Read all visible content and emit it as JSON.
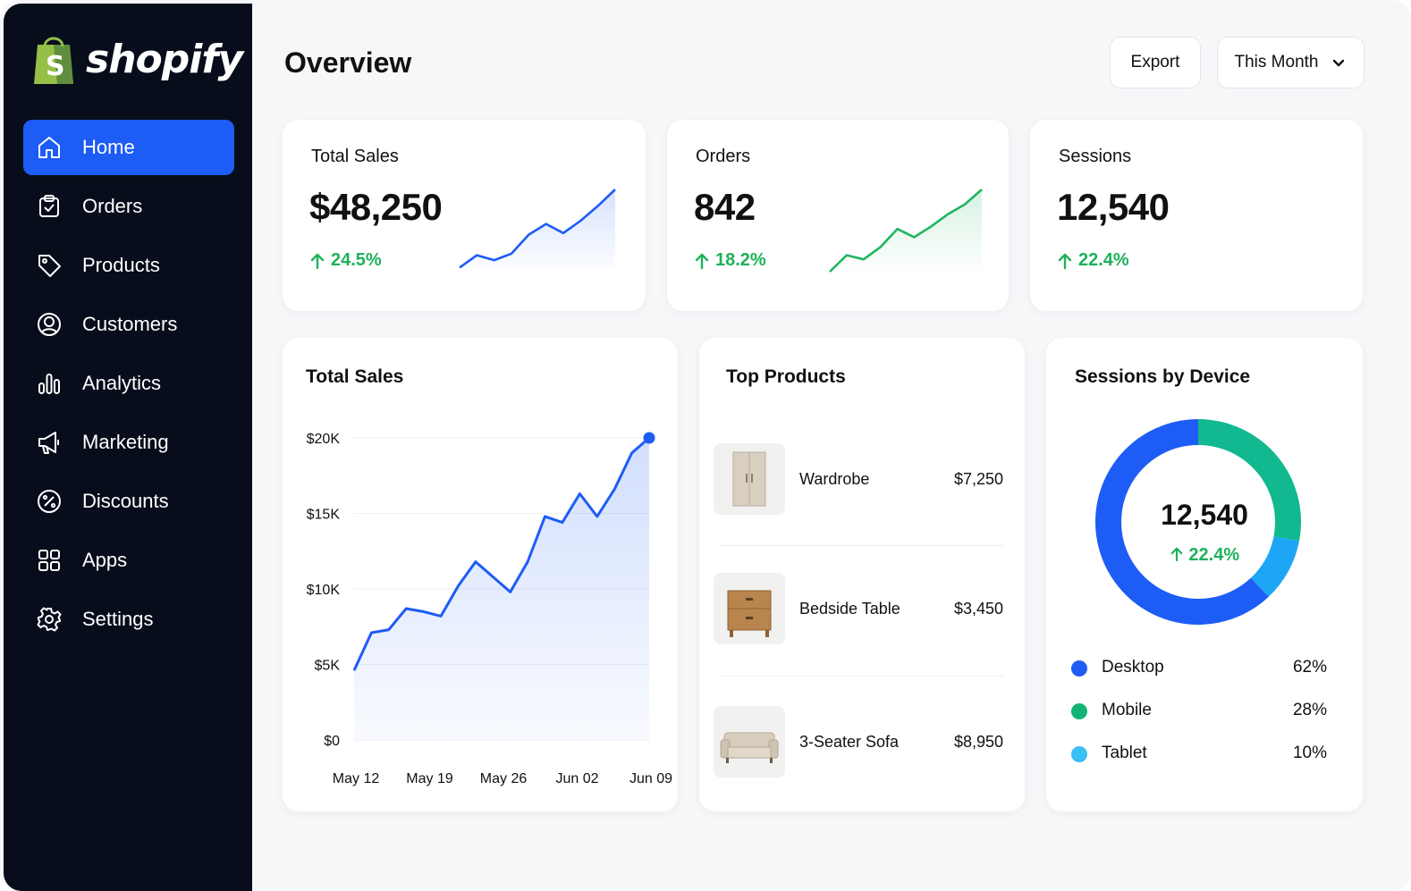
{
  "brand": {
    "name": "shopify"
  },
  "sidebar": {
    "items": [
      {
        "label": "Home",
        "icon": "home-icon",
        "active": true
      },
      {
        "label": "Orders",
        "icon": "clipboard-icon",
        "active": false
      },
      {
        "label": "Products",
        "icon": "tag-icon",
        "active": false
      },
      {
        "label": "Customers",
        "icon": "user-circle-icon",
        "active": false
      },
      {
        "label": "Analytics",
        "icon": "bar-chart-icon",
        "active": false
      },
      {
        "label": "Marketing",
        "icon": "megaphone-icon",
        "active": false
      },
      {
        "label": "Discounts",
        "icon": "percent-icon",
        "active": false
      },
      {
        "label": "Apps",
        "icon": "grid-icon",
        "active": false
      },
      {
        "label": "Settings",
        "icon": "gear-icon",
        "active": false
      }
    ]
  },
  "header": {
    "title": "Overview",
    "export_label": "Export",
    "range_label": "This Month"
  },
  "kpis": [
    {
      "label": "Total Sales",
      "value": "$48,250",
      "delta": "24.5%",
      "color": "#1d5cf5",
      "spark": [
        0.05,
        0.2,
        0.14,
        0.22,
        0.45,
        0.58,
        0.47,
        0.62,
        0.8,
        1.0
      ]
    },
    {
      "label": "Orders",
      "value": "842",
      "delta": "18.2%",
      "color": "#22b55f",
      "spark": [
        0.0,
        0.2,
        0.15,
        0.3,
        0.52,
        0.42,
        0.55,
        0.7,
        0.82,
        1.0
      ]
    },
    {
      "label": "Sessions",
      "value": "12,540",
      "delta": "22.4%",
      "color": null,
      "spark": []
    }
  ],
  "sales_panel": {
    "title": "Total Sales"
  },
  "chart_data": {
    "type": "area",
    "title": "Total Sales",
    "x_ticks": [
      "May 12",
      "May 19",
      "May 26",
      "Jun 02",
      "Jun 09"
    ],
    "y_ticks": [
      "$0",
      "$5K",
      "$10K",
      "$15K",
      "$20K"
    ],
    "ylim": [
      0,
      20000
    ],
    "grid": true,
    "series": [
      {
        "values": [
          4600,
          7100,
          7300,
          8700,
          8500,
          8200,
          10200,
          11800,
          10800,
          9800,
          11800,
          14800,
          14400,
          16300,
          14800,
          16600,
          19000,
          20000
        ]
      }
    ]
  },
  "top_products": {
    "title": "Top Products",
    "items": [
      {
        "name": "Wardrobe",
        "price": "$7,250",
        "thumb": "wardrobe-thumbnail"
      },
      {
        "name": "Bedside Table",
        "price": "$3,450",
        "thumb": "bedside-table-thumbnail"
      },
      {
        "name": "3-Seater Sofa",
        "price": "$8,950",
        "thumb": "sofa-thumbnail"
      }
    ]
  },
  "devices": {
    "title": "Sessions by Device",
    "total": "12,540",
    "delta": "22.4%",
    "items": [
      {
        "name": "Desktop",
        "pct": "62%",
        "share": 0.62,
        "color": "#1d5cf5"
      },
      {
        "name": "Mobile",
        "pct": "28%",
        "share": 0.28,
        "color": "#0fb79b"
      },
      {
        "name": "Tablet",
        "pct": "10%",
        "share": 0.1,
        "color": "#28b4f5"
      }
    ]
  },
  "colors": {
    "accent": "#1d5cf5",
    "positive": "#1db25a",
    "sidebar": "#070d1b"
  }
}
